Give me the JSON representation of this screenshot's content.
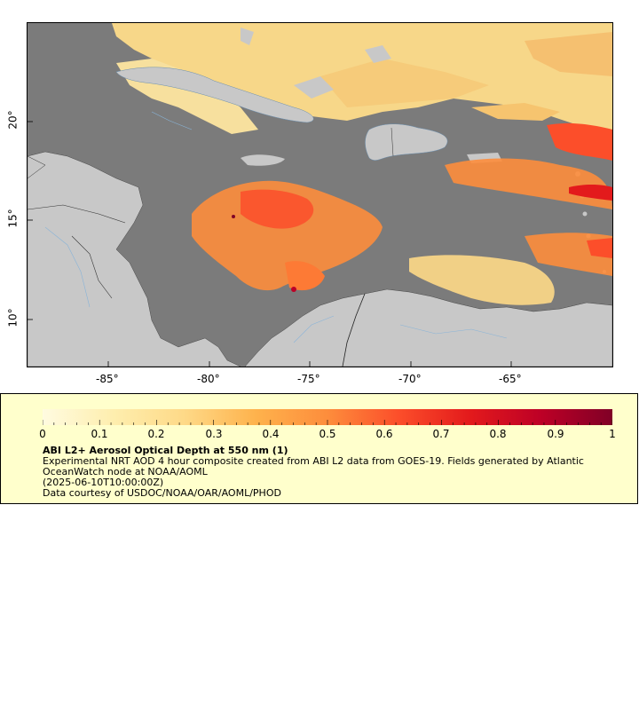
{
  "map": {
    "lon_ticks": [
      "-85°",
      "-80°",
      "-75°",
      "-70°",
      "-65°"
    ],
    "lat_ticks": [
      "20°",
      "15°",
      "10°"
    ],
    "colors": {
      "ocean": "#7b7b7b",
      "land": "#c8c8c8",
      "rivers": "#8ab4d8",
      "borders": "#333333"
    }
  },
  "legend": {
    "title": "ABI L2+ Aerosol Optical Depth at 550 nm (1)",
    "description": "Experimental NRT AOD 4 hour composite created from ABI L2 data from GOES-19. Fields generated by Atlantic OceanWatch node at NOAA/AOML",
    "date": "(2025-06-10T10:00:00Z)",
    "credit": "Data courtesy of USDOC/NOAA/OAR/AOML/PHOD",
    "colorbar_labels": [
      "0",
      "0.1",
      "0.2",
      "0.3",
      "0.4",
      "0.5",
      "0.6",
      "0.7",
      "0.8",
      "0.9",
      "1"
    ],
    "colorbar_range": [
      0,
      1
    ],
    "colorbar_colors": [
      "#fffbe0",
      "#feeeae",
      "#fed987",
      "#feb24c",
      "#fd8d3c",
      "#fc4e2a",
      "#e31a1c",
      "#bd0026",
      "#800026"
    ]
  }
}
